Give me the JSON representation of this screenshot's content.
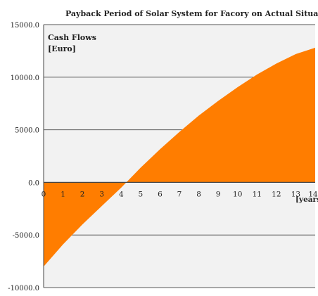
{
  "chart_data": {
    "type": "area",
    "title": "Payback Period of Solar System for Facory on Actual Situation",
    "ylabel_line1": "Cash Flows",
    "ylabel_line2": "[Euro]",
    "xlabel": "[years]",
    "ylim": [
      -10000,
      15000
    ],
    "xlim": [
      0,
      14
    ],
    "y_ticks": [
      "15000.0",
      "10000.0",
      "5000.0",
      "0.0",
      "-5000.0",
      "-10000.0"
    ],
    "y_tick_values": [
      15000,
      10000,
      5000,
      0,
      -5000,
      -10000
    ],
    "x_ticks": [
      "0",
      "1",
      "2",
      "3",
      "4",
      "5",
      "6",
      "7",
      "8",
      "9",
      "10",
      "11",
      "12",
      "13",
      "14"
    ],
    "grid": true,
    "x": [
      0,
      1,
      2,
      3,
      4,
      5,
      6,
      7,
      8,
      9,
      10,
      11,
      12,
      13,
      14
    ],
    "series": [
      {
        "values": [
          -8000,
          -5900,
          -4000,
          -2250,
          -500,
          1400,
          3150,
          4800,
          6350,
          7750,
          9050,
          10250,
          11300,
          12200,
          12800
        ]
      }
    ],
    "colors": {
      "area": "#ff7d00",
      "plot_bg": "#f2f2f2",
      "grid": "#555555",
      "axis": "#444444"
    }
  }
}
